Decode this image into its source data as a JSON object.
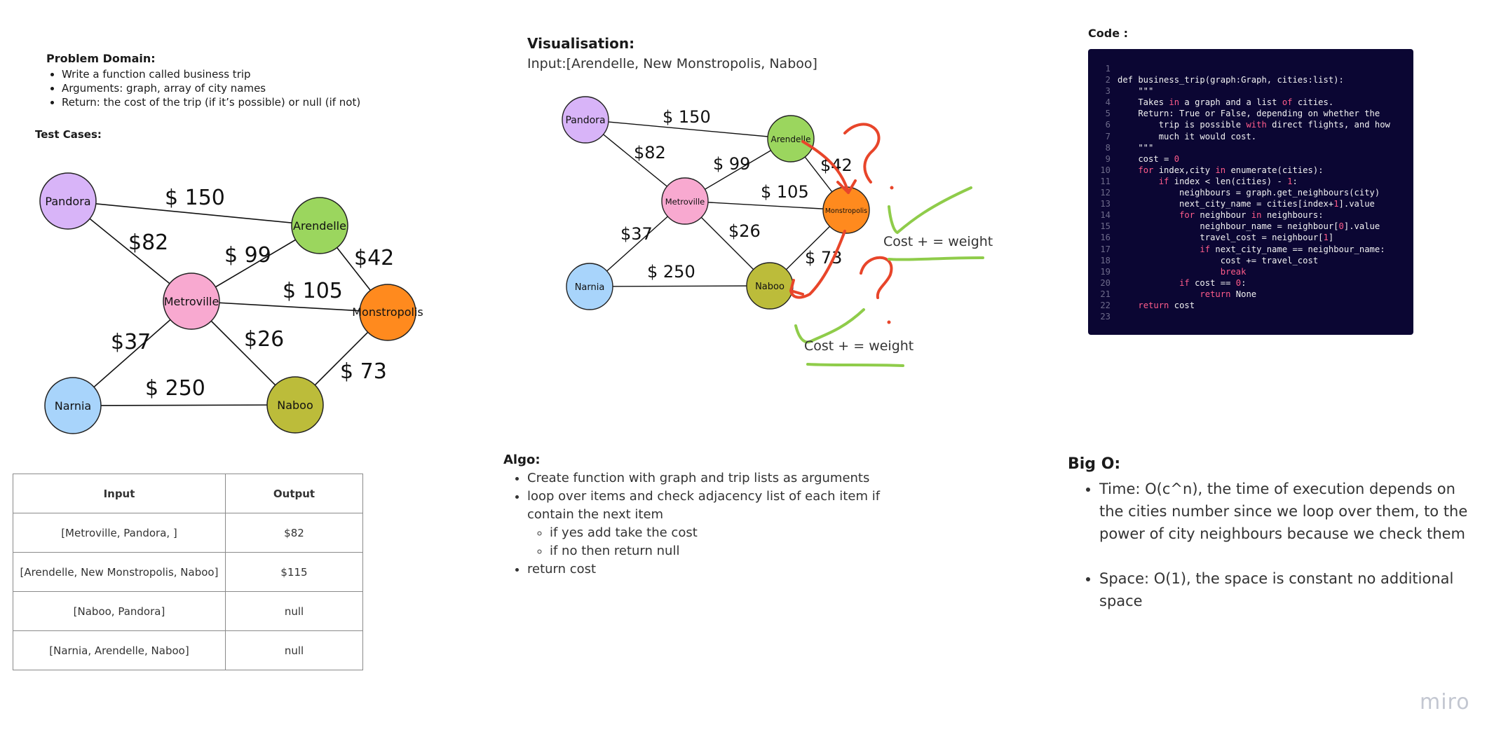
{
  "problem_domain": {
    "title": "Problem Domain:",
    "items": [
      "Write a function called business trip",
      "Arguments: graph, array of city names",
      "Return: the cost of the trip (if it’s possible) or null (if not)"
    ]
  },
  "test_cases": {
    "title": "Test Cases:",
    "headers": [
      "Input",
      "Output"
    ],
    "rows": [
      [
        "[Metroville, Pandora, ]",
        "$82"
      ],
      [
        "[Arendelle, New Monstropolis, Naboo]",
        "$115"
      ],
      [
        "[Naboo, Pandora]",
        "null"
      ],
      [
        "[Narnia, Arendelle, Naboo]",
        "null"
      ]
    ]
  },
  "graph": {
    "cities": [
      "Pandora",
      "Arendelle",
      "Metroville",
      "Monstropolis",
      "Narnia",
      "Naboo"
    ],
    "edge_labels": [
      "$ 150",
      "$82",
      "$ 99",
      "$42",
      "$ 105",
      "$37",
      "$26",
      "$ 250",
      "$ 73"
    ],
    "colors": {
      "Pandora": "#d8b4f8",
      "Arendelle": "#9bd65e",
      "Metroville": "#f8a9d0",
      "Monstropolis": "#ff8a1e",
      "Narnia": "#a8d4fb",
      "Naboo": "#bcbc3a"
    }
  },
  "visualisation": {
    "title": "Visualisation:",
    "input": "Input:[Arendelle, New Monstropolis, Naboo]",
    "annotations": [
      "Cost + = weight",
      "Cost + = weight"
    ],
    "colors": {
      "red_path": "#e8452a",
      "green_mark": "#8fcc4a"
    }
  },
  "code": {
    "title": "Code :",
    "lines": [
      "",
      "def business_trip(graph:Graph, cities:list):",
      "    \"\"\"",
      "    Takes in a graph and a list of cities.",
      "    Return: True or False, depending on whether the",
      "        trip is possible with direct flights, and how",
      "        much it would cost.",
      "    \"\"\"",
      "    cost = 0",
      "    for index,city in enumerate(cities):",
      "        if index < len(cities) - 1:",
      "            neighbours = graph.get_neighbours(city)",
      "            next_city_name = cities[index+1].value",
      "            for neighbour in neighbours:",
      "                neighbour_name = neighbour[0].value",
      "                travel_cost = neighbour[1]",
      "                if next_city_name == neighbour_name:",
      "                    cost += travel_cost",
      "                    break",
      "            if cost == 0:",
      "                return None",
      "    return cost",
      ""
    ]
  },
  "algo": {
    "title": "Algo:",
    "item1": "Create function with graph and trip lists as arguments",
    "item2": "loop over items and check adjacency list of each item if contain the next item",
    "sub1": "if yes add take the cost",
    "sub2": "if no then return null",
    "item3": "return cost"
  },
  "big_o": {
    "title": "Big O:",
    "items": [
      "Time: O(c^n), the time of execution depends on the cities number since we loop over them, to the power of city neighbours because we check them",
      "Space: O(1), the space is constant no additional space"
    ]
  },
  "brand": "miro"
}
